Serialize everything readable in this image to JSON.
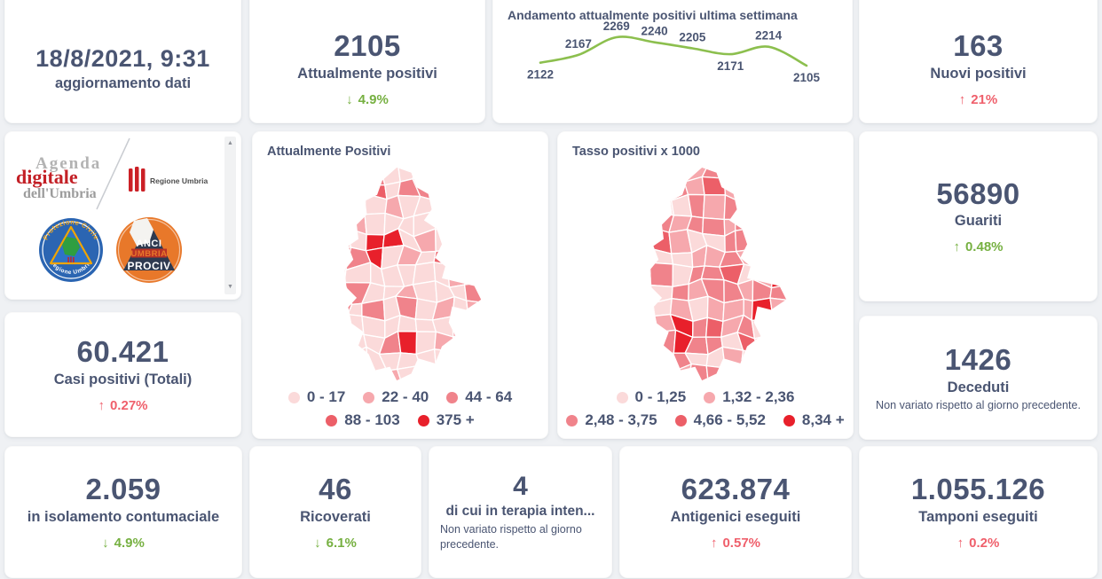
{
  "theme": {
    "background": "#eff1f4",
    "card": "#ffffff",
    "text": "#4a5572",
    "green": "#76b041",
    "red": "#ef5f6b",
    "line_green": "#8cbf4e",
    "map_shades": [
      "#fbdada",
      "#f6a8ad",
      "#f0838b",
      "#ec5f68",
      "#e8202b"
    ]
  },
  "cards": {
    "aggiornamento": {
      "value": "18/8/2021, 9:31",
      "label": "aggiornamento dati"
    },
    "attualmente_positivi": {
      "value": "2105",
      "label": "Attualmente positivi",
      "arrow": "↓",
      "delta": "4.9%",
      "delta_color": "#76b041"
    },
    "nuovi_positivi": {
      "value": "163",
      "label": "Nuovi positivi",
      "arrow": "↑",
      "delta": "21%",
      "delta_color": "#ef5f6b"
    },
    "guariti": {
      "value": "56890",
      "label": "Guariti",
      "arrow": "↑",
      "delta": "0.48%",
      "delta_color": "#76b041"
    },
    "casi_totali": {
      "value": "60.421",
      "label": "Casi positivi (Totali)",
      "arrow": "↑",
      "delta": "0.27%",
      "delta_color": "#ef5f6b"
    },
    "deceduti": {
      "value": "1426",
      "label": "Deceduti",
      "note": "Non variato rispetto al giorno precedente."
    },
    "isolamento": {
      "value": "2.059",
      "label": "in isolamento contumaciale",
      "arrow": "↓",
      "delta": "4.9%",
      "delta_color": "#76b041"
    },
    "ricoverati": {
      "value": "46",
      "label": "Ricoverati",
      "arrow": "↓",
      "delta": "6.1%",
      "delta_color": "#76b041"
    },
    "terapia_intensiva": {
      "value": "4",
      "label": "di cui in terapia inten...",
      "note": "Non variato rispetto al giorno precedente."
    },
    "antigenici": {
      "value": "623.874",
      "label": "Antigenici eseguiti",
      "arrow": "↑",
      "delta": "0.57%",
      "delta_color": "#ef5f6b"
    },
    "tamponi": {
      "value": "1.055.126",
      "label": "Tamponi eseguiti",
      "arrow": "↑",
      "delta": "0.2%",
      "delta_color": "#ef5f6b"
    }
  },
  "maps": {
    "attualmente": {
      "title": "Attualmente Positivi",
      "legend_rows": [
        [
          {
            "label": "0 - 17",
            "color": "#fbdada"
          },
          {
            "label": "22 - 40",
            "color": "#f6a8ad"
          },
          {
            "label": "44 - 64",
            "color": "#f0838b"
          }
        ],
        [
          {
            "label": "88 - 103",
            "color": "#ec5f68"
          },
          {
            "label": "375 +",
            "color": "#e8202b"
          }
        ]
      ]
    },
    "tasso": {
      "title": "Tasso positivi x 1000",
      "legend_rows": [
        [
          {
            "label": "0 - 1,25",
            "color": "#fbdada"
          },
          {
            "label": "1,32 - 2,36",
            "color": "#f6a8ad"
          }
        ],
        [
          {
            "label": "2,48 - 3,75",
            "color": "#f0838b"
          },
          {
            "label": "4,66 - 5,52",
            "color": "#ec5f68"
          },
          {
            "label": "8,34 +",
            "color": "#e8202b"
          }
        ]
      ]
    }
  },
  "logos": {
    "agenda": {
      "line1": "Agenda",
      "line2": "digitale",
      "line3": "dell'Umbria"
    },
    "regione": {
      "label": "Regione Umbria"
    },
    "protezione_civile": {
      "top": "Protezione Civile",
      "bottom": "Regione Umbria"
    },
    "anci": {
      "line1": "ANCI",
      "line2": "UMBRIA",
      "line3": "PROCIV"
    }
  },
  "chart_data": {
    "type": "line",
    "title": "Andamento attualmente positivi ultima settimana",
    "values": [
      2122,
      2167,
      2269,
      2240,
      2205,
      2171,
      2214,
      2105
    ],
    "label_positions": [
      "below",
      "above",
      "above",
      "above",
      "above",
      "below",
      "above",
      "below"
    ],
    "line_color": "#8cbf4e",
    "data_labels": true,
    "axes": "hidden",
    "ylim": [
      2090,
      2290
    ],
    "legend_position": "none"
  }
}
